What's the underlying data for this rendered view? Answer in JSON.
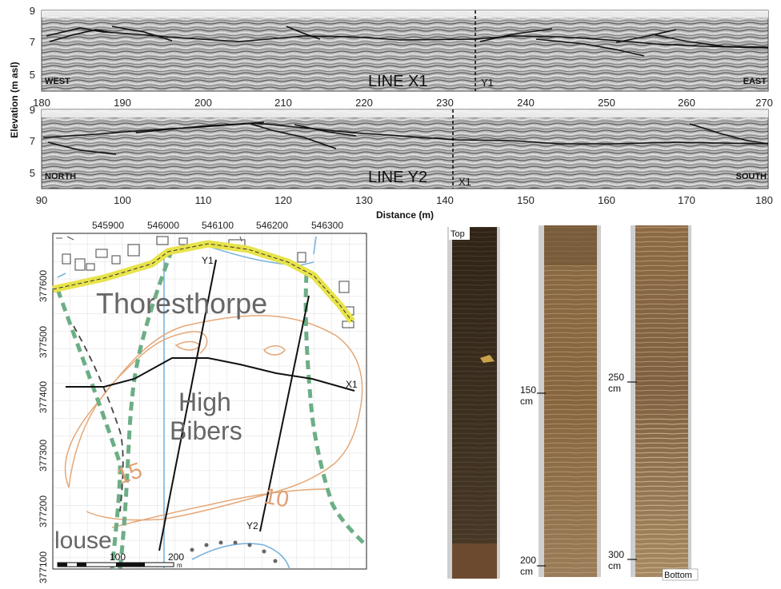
{
  "gpr": {
    "y_axis_label": "Elevation (m asl)",
    "x_axis_label": "Distance (m)",
    "y_ticks": [
      "9",
      "7",
      "5"
    ],
    "panel_x1": {
      "title": "LINE X1",
      "left_label": "WEST",
      "right_label": "EAST",
      "cross_label": "Y1",
      "x_ticks": [
        "180",
        "190",
        "200",
        "210",
        "220",
        "230",
        "240",
        "250",
        "260",
        "270"
      ]
    },
    "panel_y2": {
      "title": "LINE Y2",
      "left_label": "NORTH",
      "right_label": "SOUTH",
      "cross_label": "X1",
      "x_ticks": [
        "90",
        "100",
        "110",
        "120",
        "130",
        "140",
        "150",
        "160",
        "170",
        "180"
      ]
    }
  },
  "map": {
    "top_ticks": [
      "545900",
      "546000",
      "546100",
      "546200",
      "546300"
    ],
    "left_ticks": [
      "377600",
      "377500",
      "377400",
      "377300",
      "377200",
      "377100"
    ],
    "place_thoresthorpe": "Thoresthorpe",
    "place_high": "High",
    "place_bibers": "Bibers",
    "place_house": "louse",
    "contour_15": "15",
    "contour_10": "10",
    "line_y1": "Y1",
    "line_y2": "Y2",
    "line_x1": "X1",
    "scale_100": "100",
    "scale_200": "200",
    "scale_unit": "m"
  },
  "cores": {
    "top_label": "Top",
    "bottom_label": "Bottom",
    "depth_150": "150",
    "depth_200": "200",
    "depth_250": "250",
    "depth_300": "300",
    "unit": "cm"
  }
}
